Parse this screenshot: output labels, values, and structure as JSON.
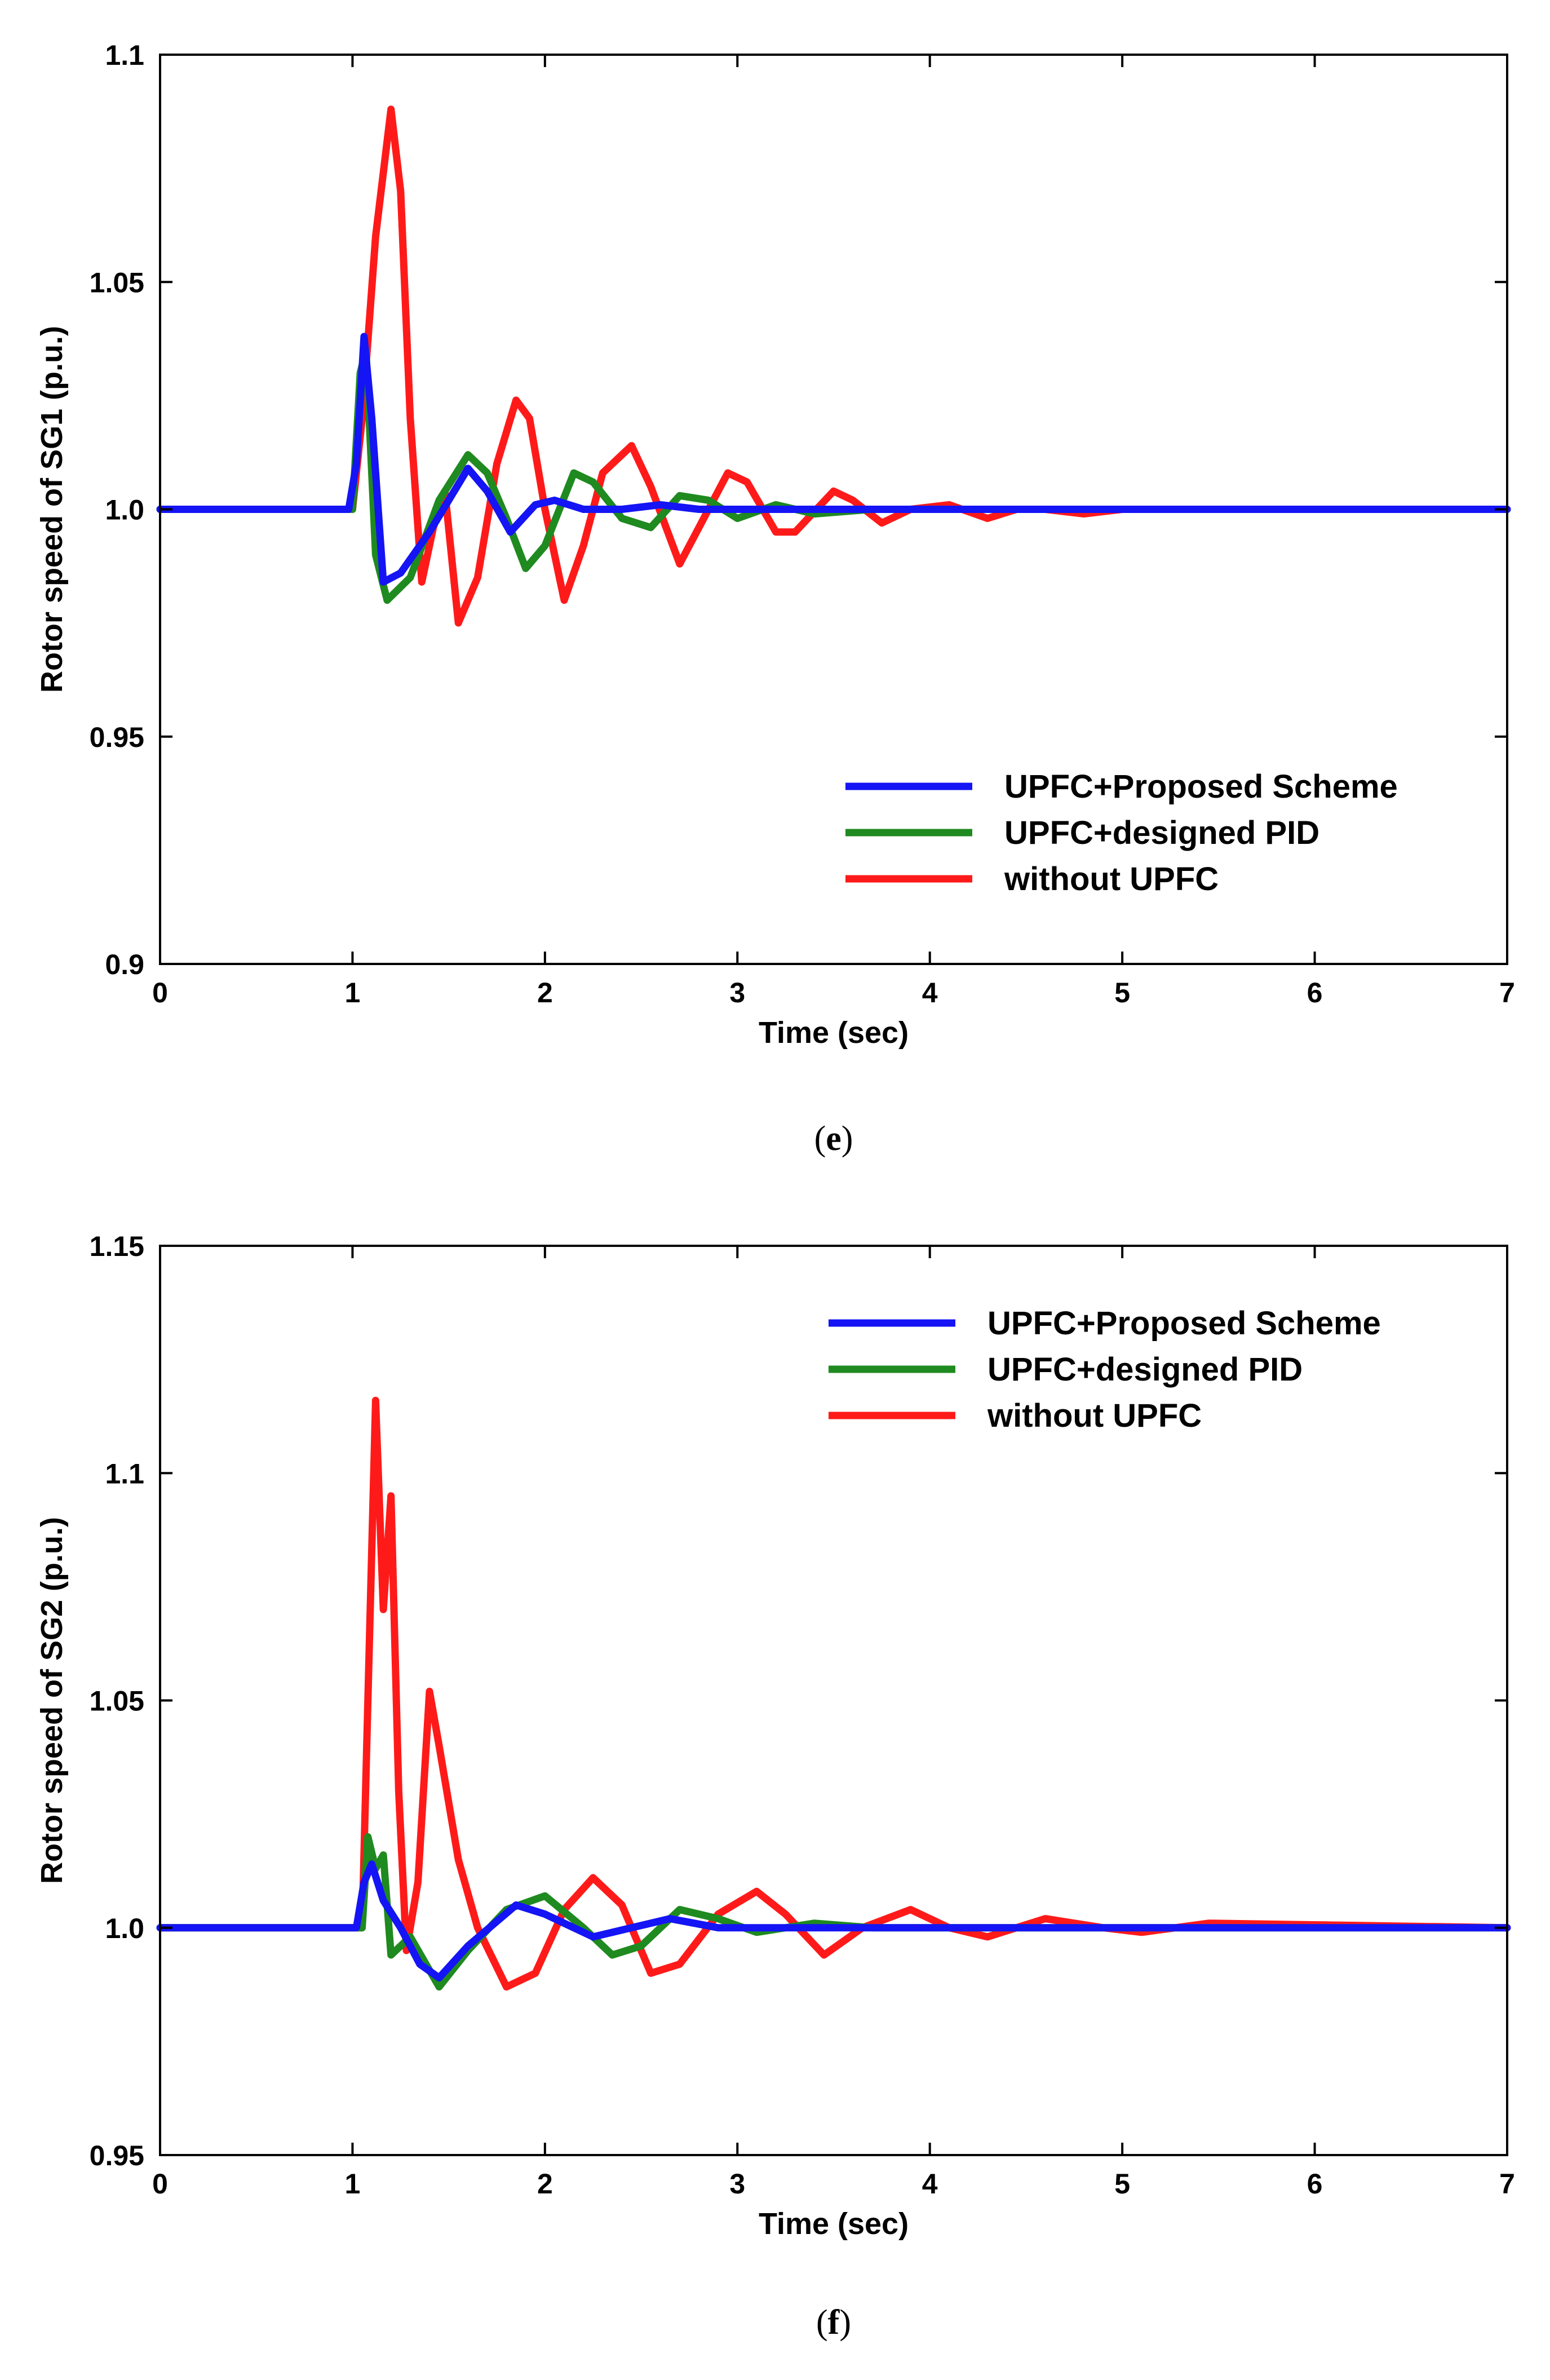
{
  "chart_data": [
    {
      "type": "line",
      "caption_letter": "e",
      "caption_open": "(",
      "caption_close": ")",
      "xlabel": "Time (sec)",
      "ylabel": "Rotor speed of SG1 (p.u.)",
      "xlim": [
        0,
        7
      ],
      "ylim": [
        0.9,
        1.1
      ],
      "xticks": [
        0,
        1,
        2,
        3,
        4,
        5,
        6,
        7
      ],
      "xtick_labels": [
        "0",
        "1",
        "2",
        "3",
        "4",
        "5",
        "6",
        "7"
      ],
      "yticks": [
        0.9,
        0.95,
        1.0,
        1.05,
        1.1
      ],
      "ytick_labels": [
        "0.9",
        "0.95",
        "1.0",
        "1.05",
        "1.1"
      ],
      "legend_position": "bottom-right",
      "series": [
        {
          "name": "without UPFC",
          "color": "#ff1a1a",
          "points": [
            [
              0,
              1.0
            ],
            [
              1.0,
              1.0
            ],
            [
              1.05,
              1.02
            ],
            [
              1.12,
              1.06
            ],
            [
              1.2,
              1.088
            ],
            [
              1.25,
              1.07
            ],
            [
              1.3,
              1.02
            ],
            [
              1.36,
              0.984
            ],
            [
              1.42,
              0.996
            ],
            [
              1.48,
              1.004
            ],
            [
              1.55,
              0.975
            ],
            [
              1.65,
              0.985
            ],
            [
              1.75,
              1.01
            ],
            [
              1.85,
              1.024
            ],
            [
              1.92,
              1.02
            ],
            [
              2.0,
              1.0
            ],
            [
              2.1,
              0.98
            ],
            [
              2.2,
              0.992
            ],
            [
              2.3,
              1.008
            ],
            [
              2.45,
              1.014
            ],
            [
              2.55,
              1.005
            ],
            [
              2.7,
              0.988
            ],
            [
              2.8,
              0.996
            ],
            [
              2.95,
              1.008
            ],
            [
              3.05,
              1.006
            ],
            [
              3.2,
              0.995
            ],
            [
              3.3,
              0.995
            ],
            [
              3.5,
              1.004
            ],
            [
              3.6,
              1.002
            ],
            [
              3.75,
              0.997
            ],
            [
              3.9,
              1.0
            ],
            [
              4.1,
              1.001
            ],
            [
              4.3,
              0.998
            ],
            [
              4.45,
              1.0
            ],
            [
              4.6,
              1.0
            ],
            [
              4.8,
              0.999
            ],
            [
              5.0,
              1.0
            ],
            [
              7.0,
              1.0
            ]
          ]
        },
        {
          "name": "UPFC+designed PID",
          "color": "#1f8a1f",
          "points": [
            [
              0,
              1.0
            ],
            [
              1.0,
              1.0
            ],
            [
              1.04,
              1.03
            ],
            [
              1.07,
              1.035
            ],
            [
              1.12,
              0.99
            ],
            [
              1.18,
              0.98
            ],
            [
              1.3,
              0.985
            ],
            [
              1.45,
              1.002
            ],
            [
              1.6,
              1.012
            ],
            [
              1.7,
              1.008
            ],
            [
              1.8,
              0.998
            ],
            [
              1.9,
              0.987
            ],
            [
              2.0,
              0.992
            ],
            [
              2.15,
              1.008
            ],
            [
              2.25,
              1.006
            ],
            [
              2.4,
              0.998
            ],
            [
              2.55,
              0.996
            ],
            [
              2.7,
              1.003
            ],
            [
              2.85,
              1.002
            ],
            [
              3.0,
              0.998
            ],
            [
              3.2,
              1.001
            ],
            [
              3.4,
              0.999
            ],
            [
              3.7,
              1.0
            ],
            [
              7.0,
              1.0
            ]
          ]
        },
        {
          "name": "UPFC+Proposed Scheme",
          "color": "#1414f5",
          "points": [
            [
              0,
              1.0
            ],
            [
              0.98,
              1.0
            ],
            [
              1.02,
              1.01
            ],
            [
              1.06,
              1.038
            ],
            [
              1.1,
              1.02
            ],
            [
              1.16,
              0.984
            ],
            [
              1.25,
              0.986
            ],
            [
              1.4,
              0.995
            ],
            [
              1.6,
              1.009
            ],
            [
              1.7,
              1.004
            ],
            [
              1.82,
              0.995
            ],
            [
              1.95,
              1.001
            ],
            [
              2.05,
              1.002
            ],
            [
              2.2,
              1.0
            ],
            [
              2.4,
              1.0
            ],
            [
              2.6,
              1.001
            ],
            [
              2.8,
              1.0
            ],
            [
              7.0,
              1.0
            ]
          ]
        }
      ]
    },
    {
      "type": "line",
      "caption_letter": "f",
      "caption_open": "(",
      "caption_close": ")",
      "xlabel": "Time (sec)",
      "ylabel": "Rotor speed of SG2 (p.u.)",
      "xlim": [
        0,
        7
      ],
      "ylim": [
        0.95,
        1.15
      ],
      "xticks": [
        0,
        1,
        2,
        3,
        4,
        5,
        6,
        7
      ],
      "xtick_labels": [
        "0",
        "1",
        "2",
        "3",
        "4",
        "5",
        "6",
        "7"
      ],
      "yticks": [
        0.95,
        1.0,
        1.05,
        1.1,
        1.15
      ],
      "ytick_labels": [
        "0.95",
        "1.0",
        "1.05",
        "1.1",
        "1.15"
      ],
      "legend_position": "top-right",
      "series": [
        {
          "name": "without UPFC",
          "color": "#ff1a1a",
          "points": [
            [
              0,
              1.0
            ],
            [
              1.05,
              1.0
            ],
            [
              1.08,
              1.05
            ],
            [
              1.12,
              1.116
            ],
            [
              1.16,
              1.07
            ],
            [
              1.2,
              1.095
            ],
            [
              1.24,
              1.03
            ],
            [
              1.28,
              0.995
            ],
            [
              1.34,
              1.01
            ],
            [
              1.4,
              1.052
            ],
            [
              1.45,
              1.04
            ],
            [
              1.55,
              1.015
            ],
            [
              1.65,
              1.0
            ],
            [
              1.8,
              0.987
            ],
            [
              1.95,
              0.99
            ],
            [
              2.1,
              1.004
            ],
            [
              2.25,
              1.011
            ],
            [
              2.4,
              1.005
            ],
            [
              2.55,
              0.99
            ],
            [
              2.7,
              0.992
            ],
            [
              2.9,
              1.003
            ],
            [
              3.1,
              1.008
            ],
            [
              3.25,
              1.003
            ],
            [
              3.45,
              0.994
            ],
            [
              3.65,
              1.0
            ],
            [
              3.9,
              1.004
            ],
            [
              4.1,
              1.0
            ],
            [
              4.3,
              0.998
            ],
            [
              4.6,
              1.002
            ],
            [
              4.9,
              1.0
            ],
            [
              5.1,
              0.999
            ],
            [
              5.45,
              1.001
            ],
            [
              7.0,
              1.0
            ]
          ]
        },
        {
          "name": "UPFC+designed PID",
          "color": "#1f8a1f",
          "points": [
            [
              0,
              1.0
            ],
            [
              1.05,
              1.0
            ],
            [
              1.08,
              1.02
            ],
            [
              1.12,
              1.013
            ],
            [
              1.16,
              1.016
            ],
            [
              1.2,
              0.994
            ],
            [
              1.3,
              0.998
            ],
            [
              1.45,
              0.987
            ],
            [
              1.6,
              0.995
            ],
            [
              1.8,
              1.004
            ],
            [
              2.0,
              1.007
            ],
            [
              2.2,
              1.0
            ],
            [
              2.35,
              0.994
            ],
            [
              2.5,
              0.996
            ],
            [
              2.7,
              1.004
            ],
            [
              2.9,
              1.002
            ],
            [
              3.1,
              0.999
            ],
            [
              3.4,
              1.001
            ],
            [
              3.7,
              1.0
            ],
            [
              4.3,
              1.0
            ],
            [
              7.0,
              1.0
            ]
          ]
        },
        {
          "name": "UPFC+Proposed Scheme",
          "color": "#1414f5",
          "points": [
            [
              0,
              1.0
            ],
            [
              1.02,
              1.0
            ],
            [
              1.06,
              1.01
            ],
            [
              1.1,
              1.014
            ],
            [
              1.16,
              1.006
            ],
            [
              1.25,
              1.0
            ],
            [
              1.35,
              0.992
            ],
            [
              1.45,
              0.989
            ],
            [
              1.6,
              0.996
            ],
            [
              1.85,
              1.005
            ],
            [
              2.0,
              1.003
            ],
            [
              2.25,
              0.998
            ],
            [
              2.45,
              1.0
            ],
            [
              2.65,
              1.002
            ],
            [
              2.9,
              1.0
            ],
            [
              3.2,
              1.0
            ],
            [
              7.0,
              1.0
            ]
          ]
        }
      ]
    }
  ]
}
